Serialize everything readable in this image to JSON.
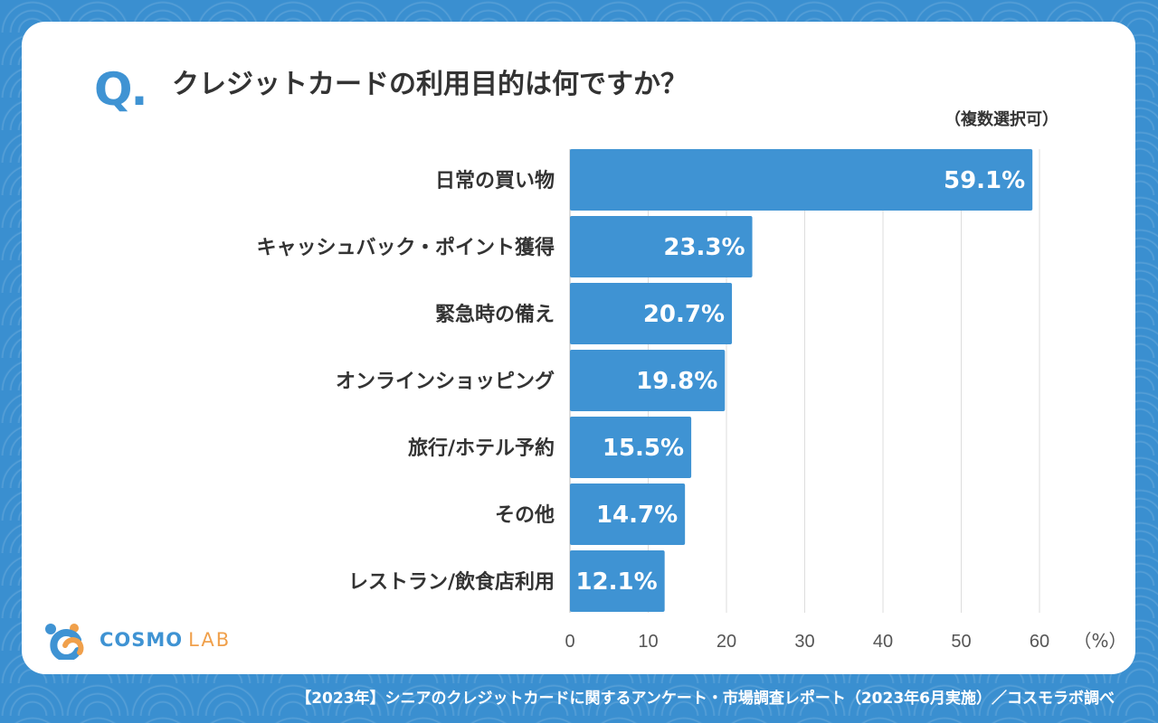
{
  "header": {
    "q_mark": "Q.",
    "title": "クレジットカードの利用目的は何ですか？",
    "subtitle": "（複数選択可）"
  },
  "chart_data": {
    "type": "bar",
    "orientation": "horizontal",
    "title": "クレジットカードの利用目的は何ですか？",
    "categories": [
      "日常の買い物",
      "キャッシュバック・ポイント獲得",
      "緊急時の備え",
      "オンラインショッピング",
      "旅行/ホテル予約",
      "その他",
      "レストラン/飲食店利用"
    ],
    "values": [
      59.1,
      23.3,
      20.7,
      19.8,
      15.5,
      14.7,
      12.1
    ],
    "value_labels": [
      "59.1%",
      "23.3%",
      "20.7%",
      "19.8%",
      "15.5%",
      "14.7%",
      "12.1%"
    ],
    "xlim": [
      0,
      60
    ],
    "xticks": [
      "0",
      "10",
      "20",
      "30",
      "40",
      "50",
      "60"
    ],
    "unit_label": "（%）",
    "grid": true,
    "bar_color": "#3f93d3"
  },
  "logo": {
    "cosmo": "COSMO",
    "lab": "LAB"
  },
  "footer": "【2023年】シニアのクレジットカードに関するアンケート・市場調査レポート（2023年6月実施）／コスモラボ調べ",
  "colors": {
    "background": "#3a8fd0",
    "accent": "#3f93d3",
    "logo_orange": "#f0a04b"
  }
}
